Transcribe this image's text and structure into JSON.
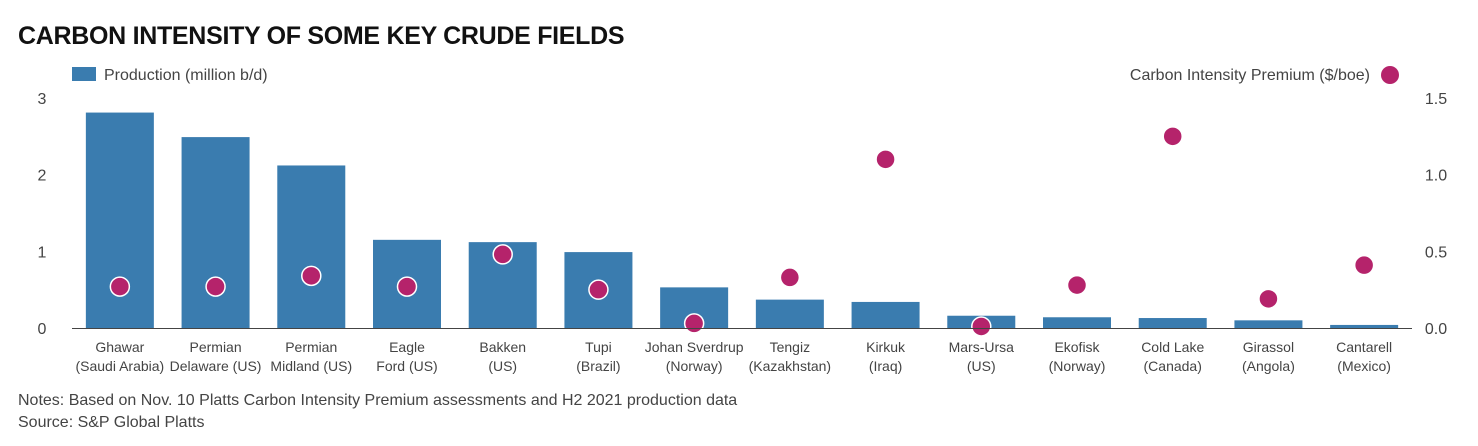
{
  "title": "CARBON INTENSITY OF SOME KEY CRUDE FIELDS",
  "notes": "Notes: Based on Nov. 10 Platts Carbon Intensity Premium assessments and H2 2021 production data",
  "source": "Source: S&P Global Platts",
  "colors": {
    "bar": "#3a7caf",
    "dot": "#b5236b",
    "dot_stroke": "#ffffff",
    "axis": "#444444"
  },
  "chart_data": {
    "type": "bar",
    "categories": [
      [
        "Ghawar",
        "(Saudi Arabia)"
      ],
      [
        "Permian",
        "Delaware (US)"
      ],
      [
        "Permian",
        "Midland (US)"
      ],
      [
        "Eagle",
        "Ford (US)"
      ],
      [
        "Bakken",
        "(US)"
      ],
      [
        "Tupi",
        "(Brazil)"
      ],
      [
        "Johan Sverdrup",
        "(Norway)"
      ],
      [
        "Tengiz",
        "(Kazakhstan)"
      ],
      [
        "Kirkuk",
        "(Iraq)"
      ],
      [
        "Mars-Ursa",
        "(US)"
      ],
      [
        "Ekofisk",
        "(Norway)"
      ],
      [
        "Cold Lake",
        "(Canada)"
      ],
      [
        "Girassol",
        "(Angola)"
      ],
      [
        "Cantarell",
        "(Mexico)"
      ]
    ],
    "series": [
      {
        "name": "Production (million b/d)",
        "type": "bar",
        "axis": "left",
        "values": [
          2.81,
          2.49,
          2.12,
          1.15,
          1.12,
          0.99,
          0.53,
          0.37,
          0.34,
          0.16,
          0.14,
          0.13,
          0.1,
          0.04
        ]
      },
      {
        "name": "Carbon Intensity Premium ($/boe)",
        "type": "scatter",
        "axis": "right",
        "values": [
          0.27,
          0.27,
          0.34,
          0.27,
          0.48,
          0.25,
          0.03,
          0.33,
          1.1,
          0.01,
          0.28,
          1.25,
          0.19,
          0.41
        ]
      }
    ],
    "y_left": {
      "min": 0,
      "max": 3,
      "ticks": [
        "0",
        "1",
        "2",
        "3"
      ]
    },
    "y_right": {
      "min": 0,
      "max": 1.5,
      "ticks": [
        "0.0",
        "0.5",
        "1.0",
        "1.5"
      ]
    },
    "grid": false,
    "legend": {
      "left": "top-left",
      "right": "top-right"
    }
  }
}
